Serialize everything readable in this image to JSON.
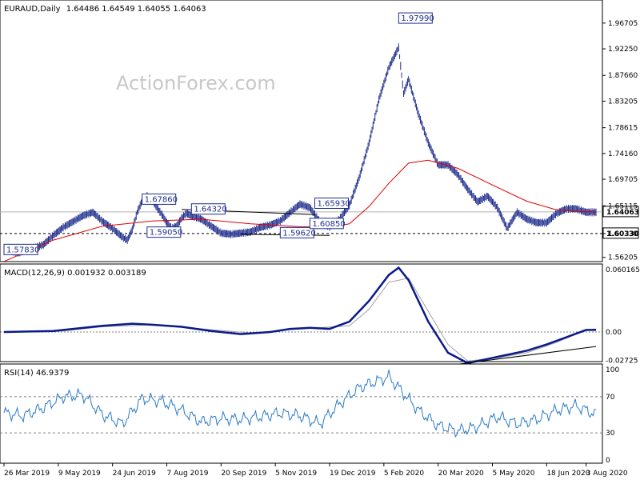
{
  "header": {
    "symbol": "EURAUD,Daily",
    "ohlc": "1.64486 1.64549 1.64055 1.64063",
    "watermark": "ActionForex.com"
  },
  "colors": {
    "price_bar": "#1e2d8c",
    "sma": "#e00000",
    "macd": "#0a1a8a",
    "signal": "#a0a0a0",
    "rsi": "#2a7bc8",
    "grid_dash": "#000000"
  },
  "chart_data": [
    {
      "type": "line",
      "name": "price",
      "title": "EURAUD,Daily",
      "y_ticks": [
        "1.96705",
        "1.92250",
        "1.87660",
        "1.83205",
        "1.78615",
        "1.74160",
        "1.69705",
        "1.65115",
        "1.60330",
        "1.56205"
      ],
      "ylim": [
        1.5575,
        2.0
      ],
      "current_price": "1.64063",
      "horizontal_line_labels": [
        "1.64063",
        "1.60330"
      ],
      "x_labels": [
        "26 Mar 2019",
        "9 May 2019",
        "24 Jun 2019",
        "7 Aug 2019",
        "20 Sep 2019",
        "5 Nov 2019",
        "19 Dec 2019",
        "5 Feb 2020",
        "20 Mar 2020",
        "5 May 2020",
        "18 Jun 2020",
        "3 Aug 2020"
      ],
      "price_path": [
        [
          0,
          1.575
        ],
        [
          3,
          1.57
        ],
        [
          6,
          1.578
        ],
        [
          8,
          1.584
        ],
        [
          10,
          1.6
        ],
        [
          12,
          1.614
        ],
        [
          14,
          1.624
        ],
        [
          16,
          1.634
        ],
        [
          18,
          1.64
        ],
        [
          20,
          1.624
        ],
        [
          22,
          1.612
        ],
        [
          24,
          1.597
        ],
        [
          25,
          1.592
        ],
        [
          26,
          1.61
        ],
        [
          27,
          1.64
        ],
        [
          28,
          1.66
        ],
        [
          29,
          1.668
        ],
        [
          30,
          1.662
        ],
        [
          31,
          1.648
        ],
        [
          32,
          1.636
        ],
        [
          33,
          1.622
        ],
        [
          34,
          1.612
        ],
        [
          35,
          1.616
        ],
        [
          36,
          1.63
        ],
        [
          37,
          1.638
        ],
        [
          38,
          1.634
        ],
        [
          40,
          1.628
        ],
        [
          42,
          1.616
        ],
        [
          44,
          1.604
        ],
        [
          46,
          1.602
        ],
        [
          48,
          1.604
        ],
        [
          50,
          1.606
        ],
        [
          52,
          1.614
        ],
        [
          54,
          1.618
        ],
        [
          56,
          1.625
        ],
        [
          58,
          1.64
        ],
        [
          60,
          1.654
        ],
        [
          62,
          1.648
        ],
        [
          64,
          1.624
        ],
        [
          66,
          1.615
        ],
        [
          68,
          1.628
        ],
        [
          70,
          1.652
        ],
        [
          72,
          1.7
        ],
        [
          74,
          1.76
        ],
        [
          76,
          1.835
        ],
        [
          78,
          1.89
        ],
        [
          80,
          1.925
        ],
        [
          81,
          1.845
        ],
        [
          82,
          1.87
        ],
        [
          84,
          1.81
        ],
        [
          86,
          1.76
        ],
        [
          88,
          1.722
        ],
        [
          90,
          1.722
        ],
        [
          92,
          1.705
        ],
        [
          94,
          1.68
        ],
        [
          96,
          1.658
        ],
        [
          98,
          1.668
        ],
        [
          100,
          1.648
        ],
        [
          102,
          1.612
        ],
        [
          104,
          1.64
        ],
        [
          106,
          1.628
        ],
        [
          108,
          1.622
        ],
        [
          110,
          1.622
        ],
        [
          112,
          1.638
        ],
        [
          114,
          1.646
        ],
        [
          116,
          1.646
        ],
        [
          118,
          1.64
        ],
        [
          120,
          1.64
        ]
      ],
      "sma_path": [
        [
          0,
          1.555
        ],
        [
          10,
          1.592
        ],
        [
          20,
          1.616
        ],
        [
          30,
          1.625
        ],
        [
          40,
          1.628
        ],
        [
          50,
          1.62
        ],
        [
          60,
          1.615
        ],
        [
          66,
          1.614
        ],
        [
          70,
          1.62
        ],
        [
          74,
          1.65
        ],
        [
          78,
          1.69
        ],
        [
          82,
          1.725
        ],
        [
          86,
          1.73
        ],
        [
          92,
          1.716
        ],
        [
          100,
          1.683
        ],
        [
          106,
          1.659
        ],
        [
          112,
          1.644
        ],
        [
          120,
          1.64
        ]
      ],
      "levels": [
        {
          "label": "1.57830",
          "x": 0,
          "y": 1.575
        },
        {
          "label": "1.67860",
          "x": 28,
          "y": 1.662
        },
        {
          "label": "1.59050",
          "x": 29,
          "y": 1.605
        },
        {
          "label": "1.64320",
          "x": 38,
          "y": 1.645
        },
        {
          "label": "1.59620",
          "x": 56,
          "y": 1.604
        },
        {
          "label": "1.60850",
          "x": 62,
          "y": 1.62
        },
        {
          "label": "1.65930",
          "x": 63,
          "y": 1.655
        },
        {
          "label": "1.97990",
          "x": 80,
          "y": 1.975
        }
      ]
    },
    {
      "type": "line",
      "name": "MACD",
      "title": "MACD(12,26,9) 0.001932 0.003189",
      "y_ticks": [
        "0.060165",
        "0.00",
        "-0.02725"
      ],
      "macd_path": [
        [
          0,
          0.0
        ],
        [
          10,
          0.001
        ],
        [
          14,
          0.003
        ],
        [
          20,
          0.006
        ],
        [
          26,
          0.008
        ],
        [
          30,
          0.007
        ],
        [
          36,
          0.005
        ],
        [
          42,
          0.001
        ],
        [
          48,
          -0.002
        ],
        [
          54,
          0.0
        ],
        [
          58,
          0.003
        ],
        [
          62,
          0.004
        ],
        [
          66,
          0.003
        ],
        [
          70,
          0.01
        ],
        [
          74,
          0.03
        ],
        [
          78,
          0.055
        ],
        [
          80,
          0.062
        ],
        [
          82,
          0.05
        ],
        [
          86,
          0.01
        ],
        [
          90,
          -0.02
        ],
        [
          94,
          -0.03
        ],
        [
          98,
          -0.026
        ],
        [
          102,
          -0.022
        ],
        [
          106,
          -0.018
        ],
        [
          110,
          -0.012
        ],
        [
          114,
          -0.005
        ],
        [
          118,
          0.002
        ],
        [
          120,
          0.002
        ]
      ],
      "signal_path": [
        [
          0,
          0.0
        ],
        [
          12,
          0.001
        ],
        [
          20,
          0.005
        ],
        [
          30,
          0.007
        ],
        [
          40,
          0.003
        ],
        [
          50,
          -0.001
        ],
        [
          60,
          0.003
        ],
        [
          70,
          0.006
        ],
        [
          74,
          0.022
        ],
        [
          78,
          0.048
        ],
        [
          82,
          0.052
        ],
        [
          86,
          0.02
        ],
        [
          90,
          -0.012
        ],
        [
          94,
          -0.028
        ],
        [
          100,
          -0.025
        ],
        [
          106,
          -0.02
        ],
        [
          112,
          -0.01
        ],
        [
          118,
          0.002
        ],
        [
          120,
          0.003
        ]
      ]
    },
    {
      "type": "line",
      "name": "RSI",
      "title": "RSI(14) 46.9379",
      "y_ticks": [
        "100",
        "70",
        "30",
        "0"
      ],
      "ylim": [
        0,
        100
      ],
      "rsi_path": [
        [
          0,
          52
        ],
        [
          4,
          49
        ],
        [
          8,
          58
        ],
        [
          12,
          70
        ],
        [
          16,
          72
        ],
        [
          20,
          50
        ],
        [
          24,
          40
        ],
        [
          28,
          68
        ],
        [
          32,
          65
        ],
        [
          36,
          55
        ],
        [
          40,
          42
        ],
        [
          44,
          46
        ],
        [
          48,
          45
        ],
        [
          52,
          48
        ],
        [
          56,
          52
        ],
        [
          60,
          49
        ],
        [
          64,
          40
        ],
        [
          68,
          62
        ],
        [
          72,
          80
        ],
        [
          76,
          88
        ],
        [
          78,
          92
        ],
        [
          80,
          80
        ],
        [
          84,
          55
        ],
        [
          88,
          38
        ],
        [
          92,
          32
        ],
        [
          96,
          37
        ],
        [
          100,
          48
        ],
        [
          104,
          40
        ],
        [
          108,
          45
        ],
        [
          112,
          55
        ],
        [
          116,
          60
        ],
        [
          120,
          50
        ]
      ]
    }
  ]
}
